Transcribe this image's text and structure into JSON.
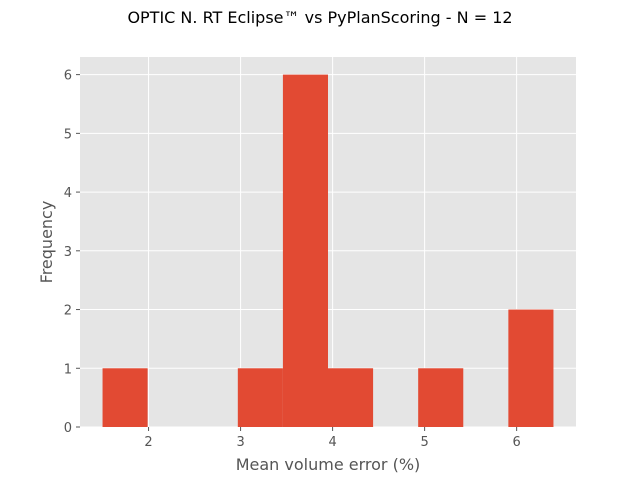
{
  "chart_data": {
    "type": "bar",
    "title": "OPTIC N. RT Eclipse™ vs PyPlanScoring - N = 12",
    "xlabel": "Mean volume error (%)",
    "ylabel": "Frequency",
    "bins": [
      {
        "x0": 1.5,
        "x1": 1.99,
        "count": 1
      },
      {
        "x0": 1.99,
        "x1": 2.48,
        "count": 0
      },
      {
        "x0": 2.48,
        "x1": 2.97,
        "count": 0
      },
      {
        "x0": 2.97,
        "x1": 3.46,
        "count": 1
      },
      {
        "x0": 3.46,
        "x1": 3.95,
        "count": 6
      },
      {
        "x0": 3.95,
        "x1": 4.44,
        "count": 1
      },
      {
        "x0": 4.44,
        "x1": 4.93,
        "count": 0
      },
      {
        "x0": 4.93,
        "x1": 5.42,
        "count": 1
      },
      {
        "x0": 5.42,
        "x1": 5.91,
        "count": 0
      },
      {
        "x0": 5.91,
        "x1": 6.4,
        "count": 2
      }
    ],
    "xlim": [
      1.255,
      6.645
    ],
    "ylim": [
      0,
      6.3
    ],
    "xticks": [
      2,
      3,
      4,
      5,
      6
    ],
    "yticks": [
      0,
      1,
      2,
      3,
      4,
      5,
      6
    ],
    "grid": true,
    "colors": {
      "bar": "#E24A33",
      "background": "#E5E5E5",
      "grid": "#FFFFFF",
      "text": "#555555"
    }
  }
}
